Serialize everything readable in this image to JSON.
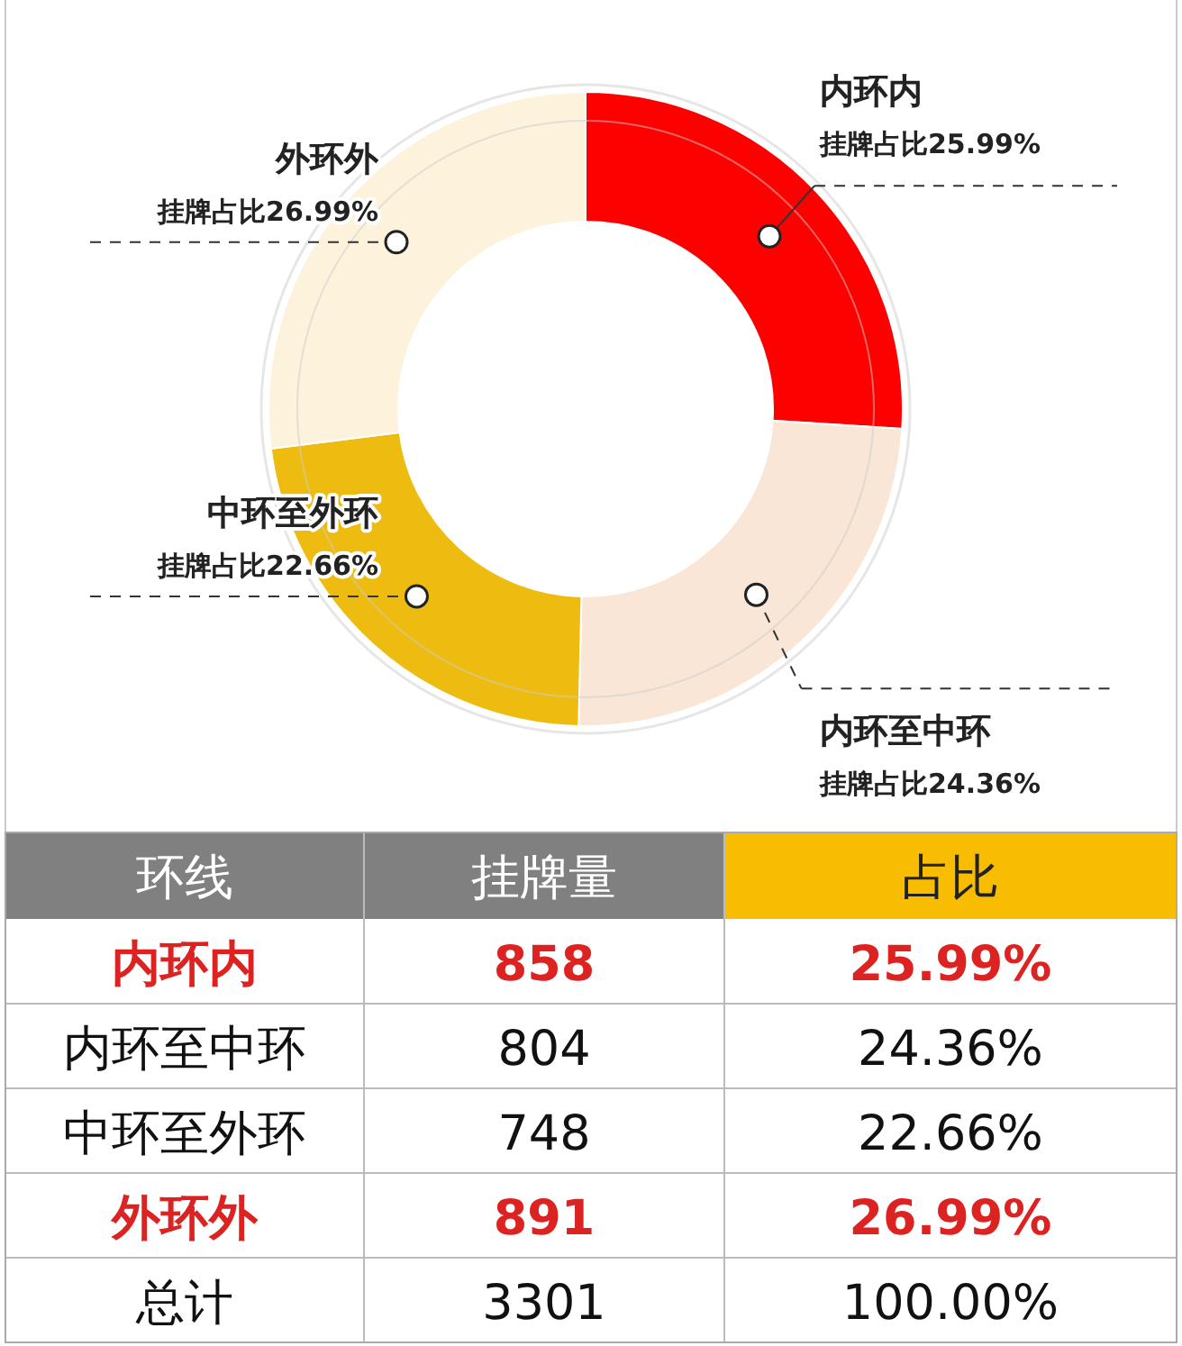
{
  "chart_data": [
    {
      "type": "donut",
      "categories": [
        "内环内",
        "内环至中环",
        "中环至外环",
        "外环外"
      ],
      "values": [
        25.99,
        24.36,
        22.66,
        26.99
      ],
      "colors": [
        "#fd0000",
        "#f9e6d6",
        "#eebc10",
        "#fdf3dc"
      ],
      "value_labels": [
        "挂牌占比25.99%",
        "挂牌占比24.36%",
        "挂牌占比22.66%",
        "挂牌占比26.99%"
      ]
    },
    {
      "type": "other",
      "xlabel": "环线",
      "categories": [
        "内环内",
        "内环至中环",
        "中环至外环",
        "外环外",
        "总计"
      ],
      "colors": [
        "#dd2222",
        null,
        null,
        "#dd2222",
        null
      ],
      "data_labels": true,
      "series": [
        {
          "name": "挂牌量",
          "values": [
            858,
            804,
            748,
            891,
            3301
          ]
        },
        {
          "name": "占比",
          "values": [
            25.99,
            24.36,
            22.66,
            26.99,
            100.0
          ],
          "value_labels": [
            "25.99%",
            "24.36%",
            "22.66%",
            "26.99%",
            "100.00%"
          ]
        }
      ]
    }
  ]
}
